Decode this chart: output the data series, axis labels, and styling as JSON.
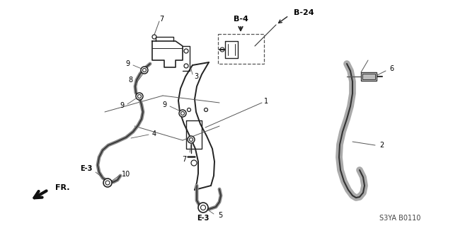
{
  "background_color": "#ffffff",
  "part_code": "S3YA B0110",
  "labels": {
    "B4": "B-4",
    "B24": "B-24",
    "E3_left": "E-3",
    "E3_bottom": "E-3",
    "FR": "FR.",
    "num1": "1",
    "num2": "2",
    "num3": "3",
    "num4": "4",
    "num5": "5",
    "num6": "6",
    "num7a": "7",
    "num7b": "7",
    "num8": "8",
    "num9a": "9",
    "num9b": "9",
    "num9c": "9",
    "num10": "10"
  },
  "figsize": [
    6.4,
    3.19
  ],
  "dpi": 100
}
